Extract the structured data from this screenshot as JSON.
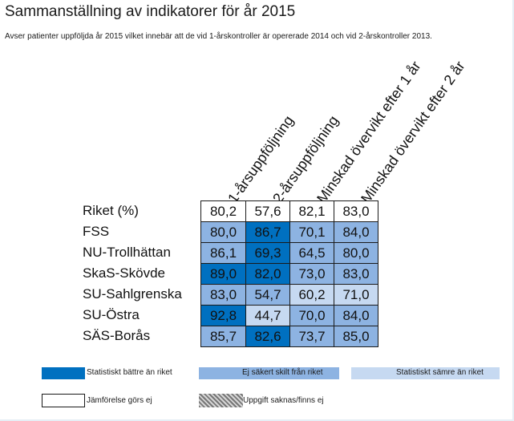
{
  "title": "Sammanställning av indikatorer för år 2015",
  "subtitle": "Avser patienter uppföljda år 2015 vilket innebär att de vid 1-årskontroller är opererade 2014 och vid 2-årskontroller 2013.",
  "colors": {
    "better": "#0070c0",
    "same": "#8db3e2",
    "worse": "#c6d9f1",
    "neutral": "#ffffff"
  },
  "table": {
    "columns": [
      "1-årsuppföljning",
      "2-årsuppföljning",
      "Minskad övervikt efter 1 år",
      "Minskad övervikt efter 2 år"
    ],
    "rows": [
      {
        "label": "Riket (%)",
        "values": [
          "80,2",
          "57,6",
          "82,1",
          "83,0"
        ],
        "status": [
          "neutral",
          "neutral",
          "neutral",
          "neutral"
        ]
      },
      {
        "label": "FSS",
        "values": [
          "80,0",
          "86,7",
          "70,1",
          "84,0"
        ],
        "status": [
          "same",
          "better",
          "same",
          "same"
        ]
      },
      {
        "label": "NU-Trollhättan",
        "values": [
          "86,1",
          "69,3",
          "64,5",
          "80,0"
        ],
        "status": [
          "same",
          "better",
          "same",
          "same"
        ]
      },
      {
        "label": "SkaS-Skövde",
        "values": [
          "89,0",
          "82,0",
          "73,0",
          "83,0"
        ],
        "status": [
          "better",
          "better",
          "same",
          "same"
        ]
      },
      {
        "label": "SU-Sahlgrenska",
        "values": [
          "83,0",
          "54,7",
          "60,2",
          "71,0"
        ],
        "status": [
          "same",
          "same",
          "worse",
          "worse"
        ]
      },
      {
        "label": "SU-Östra",
        "values": [
          "92,8",
          "44,7",
          "70,0",
          "84,0"
        ],
        "status": [
          "better",
          "worse",
          "same",
          "same"
        ]
      },
      {
        "label": "SÄS-Borås",
        "values": [
          "85,7",
          "82,6",
          "73,7",
          "85,0"
        ],
        "status": [
          "same",
          "better",
          "same",
          "same"
        ]
      }
    ]
  },
  "legend": {
    "better": "Statistiskt bättre än riket",
    "same": "Ej säkert skilt från riket",
    "worse": "Statistiskt sämre än riket",
    "neutral": "Jämförelse görs ej",
    "missing": "Uppgift saknas/finns ej"
  }
}
